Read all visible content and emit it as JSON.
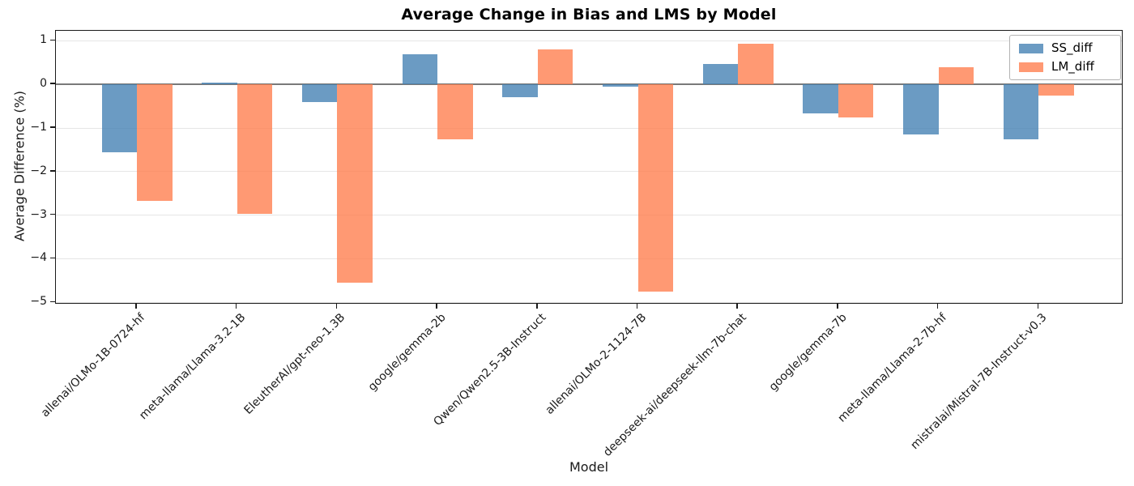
{
  "chart_data": {
    "type": "bar",
    "title": "Average Change in Bias and LMS by Model",
    "xlabel": "Model",
    "ylabel": "Average Difference (%)",
    "categories": [
      "allenai/OLMo-1B-0724-hf",
      "meta-llama/Llama-3.2-1B",
      "EleutherAI/gpt-neo-1.3B",
      "google/gemma-2b",
      "Qwen/Qwen2.5-3B-Instruct",
      "allenai/OLMo-2-1124-7B",
      "deepseek-ai/deepseek-llm-7b-chat",
      "google/gemma-7b",
      "meta-llama/Llama-2-7b-hf",
      "mistralai/Mistral-7B-Instruct-v0.3"
    ],
    "series": [
      {
        "name": "SS_diff",
        "color": "rgba(70,130,180,0.8)",
        "color_hex": "#6b9bc3",
        "values": [
          -1.55,
          0.04,
          -0.41,
          0.7,
          -0.29,
          -0.06,
          0.46,
          -0.66,
          -1.14,
          -1.26
        ]
      },
      {
        "name": "LM_diff",
        "color": "rgba(255,127,80,0.8)",
        "color_hex": "#ff9973",
        "values": [
          -2.67,
          -2.97,
          -4.54,
          -1.26,
          0.8,
          -4.76,
          0.94,
          -0.76,
          0.39,
          -0.25
        ]
      }
    ],
    "ylim": [
      -5.05,
      1.23
    ],
    "yticks": [
      1,
      0,
      -1,
      -2,
      -3,
      -4,
      -5
    ],
    "grid": "horizontal",
    "grid_color": "#e6e6e6",
    "zero_line": true,
    "zero_line_color": "#7a7a7a",
    "legend_position": "upper right",
    "background_color": "#ffffff"
  }
}
